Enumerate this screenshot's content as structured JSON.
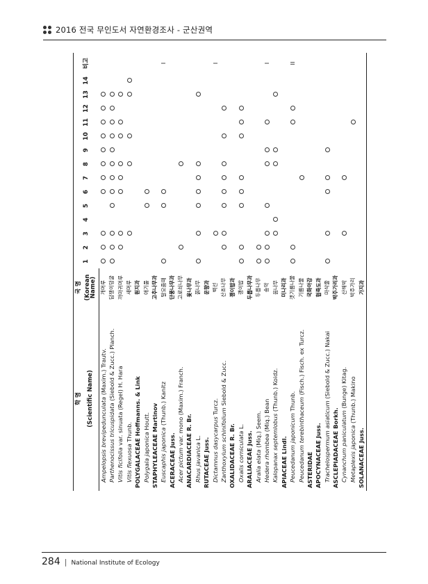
{
  "header": {
    "title": "2016 전국 무인도서 자연환경조사 - 군산권역"
  },
  "table": {
    "headers": {
      "sci_top": "학 명",
      "sci_bottom": "(Scientific Name)",
      "kor_top": "국 명",
      "kor_bottom": "(Korean Name)",
      "numbers": [
        "1",
        "2",
        "3",
        "4",
        "5",
        "6",
        "7",
        "8",
        "9",
        "10",
        "11",
        "12",
        "13",
        "14"
      ],
      "note": "비고"
    },
    "rows": [
      {
        "type": "sp",
        "name": "Ampelopsis brevipedunculata",
        "author": " (Maxim.) Trautv.",
        "kor": "개머루",
        "marks": [
          1,
          1,
          1,
          0,
          0,
          1,
          1,
          1,
          1,
          1,
          1,
          1,
          1,
          0
        ],
        "note": ""
      },
      {
        "type": "sp",
        "name": "Parthenocissus tricuspidata",
        "author": " (Siebold & Zucc.) Planch.",
        "kor": "담쟁이덩굴",
        "marks": [
          1,
          1,
          1,
          0,
          1,
          1,
          1,
          1,
          1,
          1,
          1,
          1,
          1,
          0
        ],
        "note": ""
      },
      {
        "type": "sp",
        "name": "Vitis ficifolia",
        "author": " var. sinuata (Regel) H. Hara",
        "kor": "까마귀머루",
        "marks": [
          0,
          1,
          1,
          0,
          0,
          1,
          1,
          1,
          0,
          1,
          1,
          0,
          1,
          0
        ],
        "note": ""
      },
      {
        "type": "sp",
        "name": "Vitis flexuosa",
        "author": " Thunb.",
        "kor": "새머루",
        "marks": [
          0,
          0,
          1,
          0,
          0,
          0,
          0,
          1,
          0,
          1,
          0,
          0,
          1,
          1
        ],
        "note": ""
      },
      {
        "type": "fam",
        "name": "POLYGALACEAE Hoffmanns. & Link",
        "author": "",
        "kor": "원지과",
        "marks": [
          0,
          0,
          0,
          0,
          0,
          0,
          0,
          0,
          0,
          0,
          0,
          0,
          0,
          0
        ],
        "note": ""
      },
      {
        "type": "sp",
        "name": "Polygala japonica",
        "author": " Houtt.",
        "kor": "애기풀",
        "marks": [
          0,
          0,
          0,
          0,
          1,
          1,
          0,
          0,
          0,
          0,
          0,
          0,
          0,
          0
        ],
        "note": ""
      },
      {
        "type": "fam",
        "name": "STAPHYLEACEAE Martinov",
        "author": "",
        "kor": "고추나무과",
        "marks": [
          0,
          0,
          0,
          0,
          0,
          0,
          0,
          0,
          0,
          0,
          0,
          0,
          0,
          0
        ],
        "note": ""
      },
      {
        "type": "sp",
        "name": "Euscaphis japonica",
        "author": " (Thunb.) Kanitz",
        "kor": "말오줌때",
        "marks": [
          1,
          0,
          0,
          0,
          1,
          1,
          0,
          0,
          0,
          0,
          0,
          0,
          0,
          0
        ],
        "note": "I"
      },
      {
        "type": "fam",
        "name": "ACERACEAE Juss.",
        "author": "",
        "kor": "단풍나무과",
        "marks": [
          0,
          0,
          0,
          0,
          0,
          0,
          0,
          0,
          0,
          0,
          0,
          0,
          0,
          0
        ],
        "note": ""
      },
      {
        "type": "sp",
        "name": "Acer pictum",
        "author": " var. mono (Maxim.) Franch.",
        "kor": "고로쇠나무",
        "marks": [
          0,
          1,
          0,
          0,
          0,
          0,
          0,
          1,
          0,
          0,
          0,
          0,
          0,
          0
        ],
        "note": ""
      },
      {
        "type": "fam",
        "name": "ANACARDIACEAE R. Br.",
        "author": "",
        "kor": "옻나무과",
        "marks": [
          0,
          0,
          0,
          0,
          0,
          0,
          0,
          0,
          0,
          0,
          0,
          0,
          0,
          0
        ],
        "note": ""
      },
      {
        "type": "sp",
        "name": "Rhus javanica",
        "author": " L.",
        "kor": "붉나무",
        "marks": [
          1,
          0,
          1,
          0,
          1,
          1,
          1,
          1,
          0,
          0,
          0,
          0,
          1,
          0
        ],
        "note": ""
      },
      {
        "type": "fam",
        "name": "RUTACEAE Juss.",
        "author": "",
        "kor": "운향과",
        "marks": [
          0,
          0,
          0,
          0,
          0,
          0,
          0,
          0,
          0,
          0,
          0,
          0,
          0,
          0
        ],
        "note": ""
      },
      {
        "type": "sp",
        "name": "Dictamnus dasycarpus",
        "author": " Turcz.",
        "kor": "백선",
        "marks": [
          0,
          0,
          1,
          0,
          0,
          0,
          0,
          0,
          0,
          0,
          0,
          0,
          0,
          0
        ],
        "note": "I"
      },
      {
        "type": "sp",
        "name": "Zanthoxylum schinifolium",
        "author": " Siebold & Zucc.",
        "kor": "산초나무",
        "marks": [
          0,
          1,
          1,
          0,
          1,
          1,
          1,
          1,
          0,
          1,
          0,
          1,
          0,
          0
        ],
        "note": ""
      },
      {
        "type": "fam",
        "name": "OXALIDACEAE R. Br.",
        "author": "",
        "kor": "괭이밥과",
        "marks": [
          0,
          0,
          0,
          0,
          0,
          0,
          0,
          0,
          0,
          0,
          0,
          0,
          0,
          0
        ],
        "note": ""
      },
      {
        "type": "sp",
        "name": "Oxalis corniculata",
        "author": " L.",
        "kor": "괭이밥",
        "marks": [
          1,
          1,
          0,
          0,
          1,
          1,
          1,
          0,
          0,
          1,
          1,
          1,
          0,
          0
        ],
        "note": ""
      },
      {
        "type": "fam",
        "name": "ARALIACEAE Juss.",
        "author": "",
        "kor": "두릅나무과",
        "marks": [
          0,
          0,
          0,
          0,
          0,
          0,
          0,
          0,
          0,
          0,
          0,
          0,
          0,
          0
        ],
        "note": ""
      },
      {
        "type": "sp",
        "name": "Aralia elata",
        "author": " (Miq.) Seem.",
        "kor": "두릅나무",
        "marks": [
          1,
          1,
          0,
          0,
          0,
          0,
          0,
          0,
          0,
          0,
          0,
          0,
          0,
          0
        ],
        "note": ""
      },
      {
        "type": "sp",
        "name": "Hedera rhombea",
        "author": " (Miq.) Bean",
        "kor": "송악",
        "marks": [
          1,
          1,
          1,
          0,
          1,
          0,
          0,
          1,
          1,
          0,
          1,
          0,
          0,
          0
        ],
        "note": "I"
      },
      {
        "type": "sp",
        "name": "Kalopanax septemlobus",
        "author": " (Thunb.) Koidz.",
        "kor": "음나무",
        "marks": [
          0,
          0,
          1,
          1,
          0,
          0,
          0,
          1,
          1,
          0,
          0,
          0,
          1,
          0
        ],
        "note": ""
      },
      {
        "type": "fam",
        "name": "APIACEAE Lindl.",
        "author": "",
        "kor": "미나리과",
        "marks": [
          0,
          0,
          0,
          0,
          0,
          0,
          0,
          0,
          0,
          0,
          0,
          0,
          0,
          0
        ],
        "note": ""
      },
      {
        "type": "sp",
        "name": "Peucedanum japonicum",
        "author": " Thunb.",
        "kor": "갯기름나물",
        "marks": [
          1,
          1,
          0,
          0,
          0,
          0,
          0,
          0,
          0,
          0,
          1,
          1,
          0,
          0
        ],
        "note": "II"
      },
      {
        "type": "sp",
        "name": "Peucedanum terebinthaceum",
        "author": " (Fisch.) Fisch. ex Turcz.",
        "kor": "기름나물",
        "marks": [
          0,
          0,
          0,
          0,
          0,
          0,
          1,
          0,
          0,
          0,
          0,
          0,
          0,
          0
        ],
        "note": ""
      },
      {
        "type": "fam",
        "name": "ASTERIDAE",
        "author": "",
        "kor": "국화아강",
        "marks": [
          0,
          0,
          0,
          0,
          0,
          0,
          0,
          0,
          0,
          0,
          0,
          0,
          0,
          0
        ],
        "note": ""
      },
      {
        "type": "fam",
        "name": "APOCYNACEAE Juss.",
        "author": "",
        "kor": "협죽도과",
        "marks": [
          0,
          0,
          0,
          0,
          0,
          0,
          0,
          0,
          0,
          0,
          0,
          0,
          0,
          0
        ],
        "note": ""
      },
      {
        "type": "sp",
        "name": "Trachelospermum asiaticum",
        "author": " (Siebold & Zucc.) Nakai",
        "kor": "마삭줄",
        "marks": [
          1,
          0,
          1,
          0,
          0,
          1,
          1,
          0,
          1,
          0,
          0,
          0,
          0,
          0
        ],
        "note": ""
      },
      {
        "type": "fam",
        "name": "ASCLEPIADACEAE Borkh.",
        "author": "",
        "kor": "박주가리과",
        "marks": [
          0,
          0,
          0,
          0,
          0,
          0,
          0,
          0,
          0,
          0,
          0,
          0,
          0,
          0
        ],
        "note": ""
      },
      {
        "type": "sp",
        "name": "Cynanchum paniculatum",
        "author": " (Bunge) Kitag.",
        "kor": "산해박",
        "marks": [
          0,
          0,
          1,
          0,
          0,
          0,
          1,
          0,
          0,
          0,
          0,
          0,
          0,
          0
        ],
        "note": ""
      },
      {
        "type": "sp",
        "name": "Metaplexis japonica",
        "author": " (Thunb.) Makino",
        "kor": "박주가리",
        "marks": [
          0,
          0,
          0,
          0,
          0,
          0,
          0,
          0,
          0,
          0,
          1,
          0,
          0,
          0
        ],
        "note": ""
      },
      {
        "type": "fam",
        "name": "SOLANACEAE Juss.",
        "author": "",
        "kor": "가지과",
        "marks": [
          0,
          0,
          0,
          0,
          0,
          0,
          0,
          0,
          0,
          0,
          0,
          0,
          0,
          0
        ],
        "note": ""
      }
    ]
  },
  "footer": {
    "page_number": "284",
    "separator": "|",
    "institute": "National Institute of Ecology"
  }
}
